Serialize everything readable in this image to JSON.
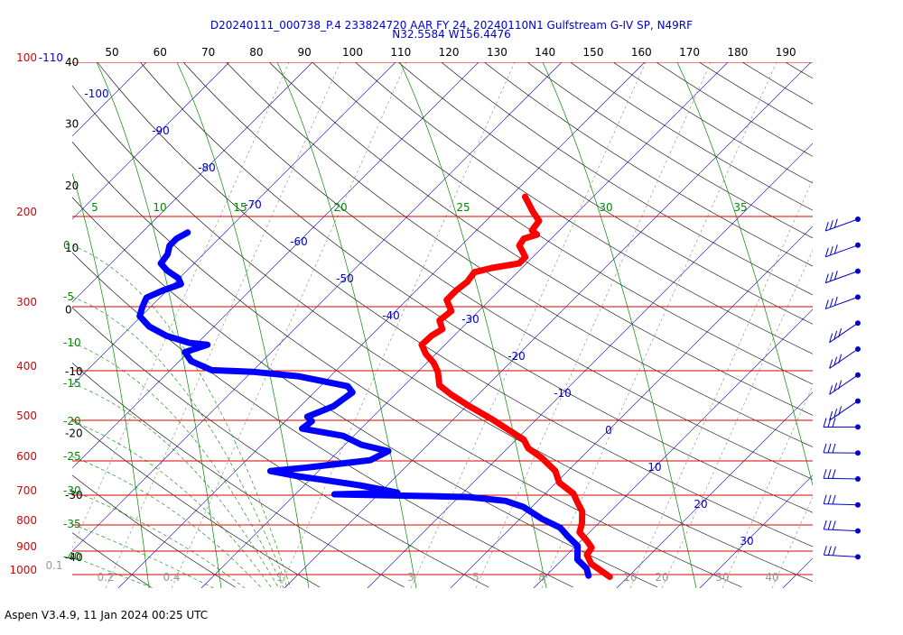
{
  "chart_data": {
    "type": "skewt",
    "title": "D20240111_000738_P.4 233824720 AAR FY 24, 20240110N1 Gulfstream G-IV SP, N49RF",
    "subtitle": "N32.5584 W156.4476",
    "footer": "Aspen V3.4.9, 11 Jan 2024  00:25 UTC",
    "ylim": [
      100,
      1000
    ],
    "yticks": [
      100,
      200,
      300,
      400,
      500,
      600,
      700,
      800,
      900,
      1000
    ],
    "isotherm_labels": [
      -110,
      -100,
      -90,
      -80,
      -70,
      -60,
      -50,
      -40,
      -30,
      -20,
      -10,
      0,
      10,
      20,
      30
    ],
    "dry_adiabat_labels_top": [
      50,
      60,
      70,
      80,
      90,
      100,
      110,
      120,
      130,
      140,
      150,
      160,
      170,
      180,
      190
    ],
    "dry_adiabat_labels_left": [
      40,
      30,
      20,
      10,
      0,
      -10,
      -20,
      -30,
      -40
    ],
    "moist_adiabat_labels_top": [
      5,
      10,
      15,
      20,
      25,
      30,
      35
    ],
    "moist_adiabat_labels_left": [
      0,
      -5,
      -10,
      -15,
      -20,
      -25,
      -30,
      -35,
      -40
    ],
    "mixing_ratio_labels": [
      0.1,
      0.2,
      0.4,
      1,
      3,
      5,
      8,
      10,
      20,
      30,
      40
    ],
    "temperature": {
      "color": "#ff0000",
      "pressure": [
        183,
        196,
        204,
        213,
        217,
        221,
        228,
        240,
        247,
        252,
        257,
        268,
        279,
        291,
        306,
        319,
        332,
        342,
        356,
        371,
        386,
        402,
        427,
        445,
        469,
        498,
        525,
        545,
        567,
        591,
        628,
        662,
        695,
        724,
        753,
        794,
        827,
        861,
        886,
        915,
        953,
        1010
      ],
      "values": [
        -38.2,
        -35.4,
        -33.6,
        -33.3,
        -32.2,
        -33.3,
        -33.0,
        -30.9,
        -30.9,
        -33.6,
        -35.2,
        -34.9,
        -35.2,
        -35.2,
        -33.3,
        -33.6,
        -32.2,
        -32.7,
        -32.8,
        -31.2,
        -29.2,
        -27.6,
        -25.8,
        -23.3,
        -19.7,
        -15.3,
        -11.7,
        -9.1,
        -7.5,
        -4.8,
        -1.5,
        0.4,
        3.4,
        5.0,
        6.6,
        8.0,
        8.8,
        10.8,
        12.1,
        12.4,
        14.0,
        17.8
      ]
    },
    "dewpoint": {
      "color": "#0000ff",
      "pressure": [
        215,
        221,
        228,
        237,
        247,
        255,
        264,
        271,
        279,
        288,
        300,
        313,
        328,
        342,
        353,
        356,
        368,
        383,
        399,
        402,
        410,
        429,
        441,
        469,
        492,
        502,
        519,
        536,
        558,
        574,
        598,
        618,
        628,
        643,
        654,
        670,
        681,
        692,
        697,
        703,
        706,
        718,
        738,
        778,
        810,
        844,
        879,
        934,
        973,
        1005
      ],
      "values": [
        -74.5,
        -75.1,
        -75.1,
        -74.3,
        -74.0,
        -72.4,
        -70.1,
        -69.1,
        -70.5,
        -71.6,
        -71.0,
        -70.2,
        -67.8,
        -64.6,
        -61.0,
        -58.6,
        -60.4,
        -58.6,
        -55.0,
        -49.9,
        -43.9,
        -36.7,
        -35.4,
        -36.0,
        -37.9,
        -36.8,
        -37.1,
        -31.3,
        -28.0,
        -24.0,
        -25.1,
        -31.8,
        -35.8,
        -31.8,
        -28.2,
        -23.2,
        -20.5,
        -17.9,
        -25.3,
        -13.2,
        -8.7,
        -3.9,
        -1.0,
        2.6,
        5.9,
        8.0,
        10.2,
        11.8,
        14.0,
        15.1
      ]
    }
  }
}
